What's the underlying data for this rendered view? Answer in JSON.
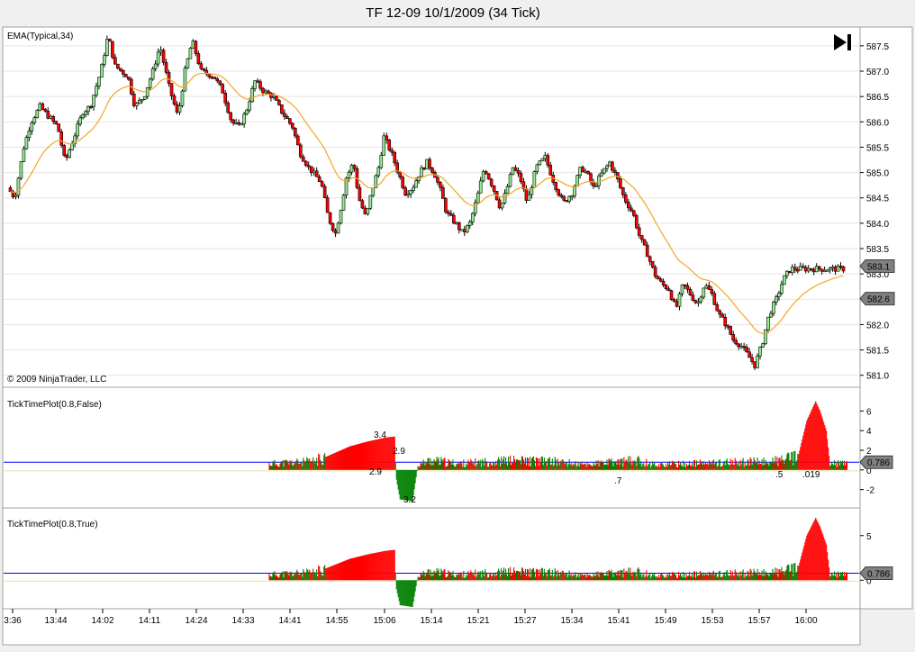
{
  "window": {
    "title": "TF 12-09  10/1/2009 (34 Tick)",
    "copyright": "© 2009 NinjaTrader, LLC",
    "play_icon": "skip-to-end-icon"
  },
  "colors": {
    "background": "#ffffff",
    "frame": "#f0f0f0",
    "up_candle": "#90ee90",
    "down_candle": "#ff0000",
    "ema": "#f5a623",
    "tick_up": "#ff0000",
    "tick_down": "#008000",
    "ref_line": "#0000ff"
  },
  "chart_data": [
    {
      "type": "candlestick",
      "panel": "price",
      "indicator_label": "EMA(Typical,34)",
      "ylim": [
        580.8,
        587.8
      ],
      "y_ticks": [
        "587.5",
        "587.0",
        "586.5",
        "586.0",
        "585.5",
        "585.0",
        "584.5",
        "584.0",
        "583.5",
        "583.0",
        "582.5",
        "582.0",
        "581.5",
        "581.0"
      ],
      "price_markers": [
        "583.1",
        "582.6"
      ],
      "close_path": [
        [
          0,
          584.7
        ],
        [
          8,
          584.5
        ],
        [
          18,
          585.5
        ],
        [
          26,
          586.0
        ],
        [
          36,
          586.3
        ],
        [
          46,
          586.1
        ],
        [
          56,
          585.9
        ],
        [
          64,
          585.2
        ],
        [
          72,
          585.6
        ],
        [
          84,
          586.2
        ],
        [
          92,
          586.3
        ],
        [
          104,
          587.0
        ],
        [
          112,
          587.7
        ],
        [
          120,
          587.1
        ],
        [
          134,
          586.9
        ],
        [
          142,
          586.3
        ],
        [
          152,
          586.5
        ],
        [
          162,
          587.0
        ],
        [
          170,
          587.5
        ],
        [
          180,
          586.7
        ],
        [
          190,
          586.1
        ],
        [
          198,
          587.0
        ],
        [
          206,
          587.6
        ],
        [
          216,
          587.0
        ],
        [
          230,
          586.9
        ],
        [
          240,
          586.6
        ],
        [
          250,
          586.0
        ],
        [
          258,
          585.9
        ],
        [
          266,
          586.2
        ],
        [
          276,
          586.8
        ],
        [
          286,
          586.6
        ],
        [
          296,
          586.5
        ],
        [
          306,
          586.2
        ],
        [
          318,
          585.9
        ],
        [
          326,
          585.4
        ],
        [
          336,
          585.1
        ],
        [
          350,
          584.8
        ],
        [
          358,
          584.1
        ],
        [
          366,
          583.8
        ],
        [
          372,
          584.3
        ],
        [
          378,
          584.9
        ],
        [
          386,
          585.2
        ],
        [
          392,
          584.5
        ],
        [
          400,
          584.1
        ],
        [
          406,
          584.6
        ],
        [
          414,
          585.1
        ],
        [
          420,
          585.7
        ],
        [
          428,
          585.4
        ],
        [
          436,
          585.0
        ],
        [
          444,
          584.6
        ],
        [
          452,
          584.7
        ],
        [
          460,
          585.0
        ],
        [
          468,
          585.2
        ],
        [
          476,
          585.0
        ],
        [
          484,
          584.6
        ],
        [
          490,
          584.2
        ],
        [
          500,
          584.0
        ],
        [
          508,
          583.8
        ],
        [
          516,
          584.0
        ],
        [
          524,
          584.5
        ],
        [
          532,
          585.1
        ],
        [
          542,
          584.7
        ],
        [
          550,
          584.3
        ],
        [
          556,
          584.6
        ],
        [
          564,
          585.1
        ],
        [
          572,
          584.9
        ],
        [
          580,
          584.4
        ],
        [
          590,
          585.1
        ],
        [
          600,
          585.3
        ],
        [
          610,
          584.8
        ],
        [
          620,
          584.4
        ],
        [
          630,
          584.6
        ],
        [
          640,
          585.1
        ],
        [
          646,
          585.0
        ],
        [
          654,
          584.7
        ],
        [
          664,
          585.0
        ],
        [
          672,
          585.2
        ],
        [
          680,
          584.9
        ],
        [
          688,
          584.5
        ],
        [
          698,
          584.2
        ],
        [
          706,
          583.7
        ],
        [
          714,
          583.4
        ],
        [
          722,
          583.0
        ],
        [
          730,
          582.8
        ],
        [
          738,
          582.7
        ],
        [
          746,
          582.3
        ],
        [
          754,
          582.8
        ],
        [
          762,
          582.6
        ],
        [
          770,
          582.4
        ],
        [
          778,
          582.8
        ],
        [
          786,
          582.6
        ],
        [
          794,
          582.2
        ],
        [
          802,
          582.0
        ],
        [
          810,
          581.7
        ],
        [
          818,
          581.6
        ],
        [
          826,
          581.4
        ],
        [
          834,
          581.2
        ],
        [
          842,
          581.6
        ],
        [
          850,
          582.2
        ],
        [
          858,
          582.5
        ],
        [
          866,
          582.9
        ],
        [
          874,
          583.1
        ]
      ]
    },
    {
      "type": "area",
      "panel": "tick1",
      "indicator_label": "TickTimePlot(0.8,False)",
      "ylim": [
        -3.5,
        7.5
      ],
      "y_ticks": [
        "6",
        "4",
        "2",
        "0",
        "-2"
      ],
      "value_marker": "0.786",
      "annotations": [
        "3.4",
        "2.9",
        "2.9",
        "3.2",
        ".7",
        ".5",
        ".019"
      ],
      "start_index": 290,
      "shape": [
        [
          290,
          0.6
        ],
        [
          340,
          0.8
        ],
        [
          360,
          1.6
        ],
        [
          380,
          2.4
        ],
        [
          400,
          2.9
        ],
        [
          420,
          3.3
        ],
        [
          430,
          3.4
        ],
        [
          432,
          -1.0
        ],
        [
          436,
          -3.0
        ],
        [
          450,
          -3.2
        ],
        [
          456,
          0.5
        ],
        [
          470,
          0.9
        ],
        [
          500,
          0.6
        ],
        [
          560,
          0.9
        ],
        [
          610,
          0.8
        ],
        [
          640,
          0.5
        ],
        [
          700,
          0.9
        ],
        [
          720,
          0.5
        ],
        [
          800,
          0.7
        ],
        [
          850,
          0.8
        ],
        [
          880,
          1.2
        ],
        [
          890,
          5.0
        ],
        [
          900,
          7.0
        ],
        [
          905,
          6.0
        ],
        [
          912,
          4.0
        ],
        [
          916,
          0.6
        ],
        [
          935,
          0.6
        ]
      ]
    },
    {
      "type": "area",
      "panel": "tick2",
      "indicator_label": "TickTimePlot(0.8,True)",
      "ylim": [
        -3.0,
        7.5
      ],
      "y_ticks": [
        "5",
        "0"
      ],
      "value_marker": "0.786",
      "start_index": 290,
      "shape": [
        [
          290,
          0.6
        ],
        [
          340,
          0.8
        ],
        [
          360,
          1.6
        ],
        [
          380,
          2.4
        ],
        [
          400,
          2.9
        ],
        [
          420,
          3.3
        ],
        [
          430,
          3.4
        ],
        [
          432,
          -1.0
        ],
        [
          436,
          -2.8
        ],
        [
          450,
          -3.0
        ],
        [
          456,
          0.5
        ],
        [
          470,
          0.9
        ],
        [
          500,
          0.6
        ],
        [
          560,
          0.9
        ],
        [
          610,
          0.8
        ],
        [
          640,
          0.5
        ],
        [
          700,
          0.9
        ],
        [
          720,
          0.5
        ],
        [
          800,
          0.7
        ],
        [
          850,
          0.8
        ],
        [
          880,
          1.2
        ],
        [
          890,
          5.0
        ],
        [
          900,
          7.0
        ],
        [
          905,
          6.0
        ],
        [
          912,
          4.0
        ],
        [
          916,
          0.6
        ],
        [
          935,
          0.6
        ]
      ]
    }
  ],
  "x_axis": {
    "labels": [
      "3:36",
      "13:44",
      "14:02",
      "14:11",
      "14:24",
      "14:33",
      "14:41",
      "14:55",
      "15:06",
      "15:14",
      "15:21",
      "15:27",
      "15:34",
      "15:41",
      "15:49",
      "15:53",
      "15:57",
      "16:00"
    ]
  }
}
